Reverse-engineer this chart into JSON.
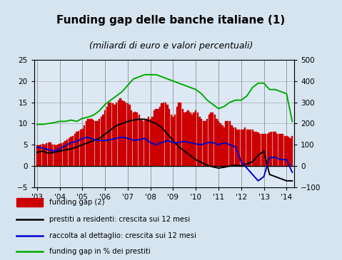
{
  "title": "Funding gap delle banche italiane (1)",
  "subtitle": "(miliardi di euro e valori percentuali)",
  "background_color": "#d6e4f0",
  "plot_bg_color": "#dce9f5",
  "title_bg_color": "#c8daea",
  "ylim_left": [
    -5,
    25
  ],
  "ylim_right": [
    -100,
    500
  ],
  "yticks_left": [
    -5,
    0,
    5,
    10,
    15,
    20,
    25
  ],
  "yticks_right": [
    -100,
    0,
    100,
    200,
    300,
    400,
    500
  ],
  "bar_color": "#cc0000",
  "bar_edge_color": "#cc0000",
  "x_labels": [
    "'03",
    "'04",
    "'05",
    "'06",
    "'07",
    "'08",
    "'09",
    "'10",
    "'11",
    "'12",
    "'13",
    "'14"
  ],
  "x_positions": [
    0,
    12,
    24,
    36,
    48,
    60,
    72,
    84,
    96,
    108,
    120,
    132
  ],
  "bar_x": [
    0,
    1,
    2,
    3,
    4,
    5,
    6,
    7,
    8,
    9,
    10,
    11,
    12,
    13,
    14,
    15,
    16,
    17,
    18,
    19,
    20,
    21,
    22,
    23,
    24,
    25,
    26,
    27,
    28,
    29,
    30,
    31,
    32,
    33,
    34,
    35,
    36,
    37,
    38,
    39,
    40,
    41,
    42,
    43,
    44,
    45,
    46,
    47,
    48,
    49,
    50,
    51,
    52,
    53,
    54,
    55,
    56,
    57,
    58,
    59,
    60,
    61,
    62,
    63,
    64,
    65,
    66,
    67,
    68,
    69,
    70,
    71,
    72,
    73,
    74,
    75,
    76,
    77,
    78,
    79,
    80,
    81,
    82,
    83,
    84,
    85,
    86,
    87,
    88,
    89,
    90,
    91,
    92,
    93,
    94,
    95,
    96,
    97,
    98,
    99,
    100,
    101,
    102,
    103,
    104,
    105,
    106,
    107,
    108,
    109,
    110,
    111,
    112,
    113,
    114,
    115,
    116,
    117,
    118,
    119,
    120,
    121,
    122,
    123,
    124,
    125,
    126,
    127,
    128,
    129,
    130,
    131,
    132,
    133,
    134,
    135
  ],
  "bar_values": [
    4.8,
    4.9,
    5.1,
    5.2,
    5.0,
    5.3,
    5.5,
    5.6,
    5.0,
    5.0,
    4.8,
    5.0,
    5.2,
    5.4,
    5.5,
    5.8,
    6.2,
    6.5,
    6.8,
    7.0,
    7.5,
    8.0,
    8.3,
    8.5,
    8.8,
    9.5,
    10.5,
    11.0,
    11.0,
    11.0,
    10.8,
    10.5,
    10.5,
    11.0,
    11.5,
    12.0,
    13.0,
    14.0,
    15.0,
    15.0,
    14.8,
    14.5,
    15.0,
    15.5,
    16.0,
    15.5,
    15.2,
    15.0,
    14.7,
    14.5,
    13.0,
    12.5,
    12.8,
    12.5,
    12.0,
    11.0,
    10.5,
    10.8,
    11.0,
    11.5,
    11.0,
    11.5,
    13.0,
    13.5,
    13.5,
    14.0,
    14.8,
    15.0,
    15.0,
    14.5,
    13.5,
    12.0,
    11.5,
    12.0,
    14.0,
    15.0,
    15.0,
    13.5,
    12.5,
    12.8,
    13.0,
    12.5,
    12.0,
    12.5,
    13.0,
    12.5,
    11.5,
    11.0,
    10.5,
    10.5,
    11.0,
    12.0,
    12.5,
    12.5,
    12.0,
    11.0,
    10.5,
    10.0,
    9.5,
    9.0,
    10.5,
    10.5,
    10.5,
    9.5,
    9.0,
    9.0,
    8.5,
    8.5,
    8.5,
    8.5,
    9.0,
    8.5,
    8.5,
    8.5,
    8.5,
    8.0,
    8.0,
    7.8,
    7.5,
    7.5,
    7.5,
    7.5,
    7.5,
    7.8,
    8.0,
    8.0,
    8.0,
    7.5,
    7.5,
    7.5,
    7.5,
    7.0,
    7.0,
    6.8,
    6.5,
    7.0
  ],
  "black_line_x": [
    0,
    3,
    6,
    9,
    12,
    15,
    18,
    21,
    24,
    27,
    30,
    33,
    36,
    39,
    42,
    45,
    48,
    51,
    54,
    57,
    60,
    63,
    66,
    69,
    72,
    75,
    78,
    81,
    84,
    87,
    90,
    93,
    96,
    99,
    102,
    105,
    108,
    111,
    114,
    117,
    120,
    123,
    126,
    129,
    132,
    135
  ],
  "black_line_y": [
    3.2,
    3.5,
    3.0,
    3.2,
    3.5,
    3.8,
    4.0,
    4.5,
    5.0,
    5.5,
    6.0,
    6.5,
    7.5,
    8.5,
    9.5,
    10.0,
    10.5,
    10.8,
    11.0,
    11.0,
    10.5,
    10.0,
    9.0,
    7.5,
    6.0,
    4.5,
    3.5,
    2.5,
    1.5,
    0.8,
    0.2,
    -0.2,
    -0.5,
    -0.3,
    0.0,
    0.2,
    0.0,
    0.5,
    1.0,
    2.5,
    3.5,
    -2.0,
    -2.5,
    -3.0,
    -3.5,
    -3.5
  ],
  "blue_line_x": [
    0,
    3,
    6,
    9,
    12,
    15,
    18,
    21,
    24,
    27,
    30,
    33,
    36,
    39,
    42,
    45,
    48,
    51,
    54,
    57,
    60,
    63,
    66,
    69,
    72,
    75,
    78,
    81,
    84,
    87,
    90,
    93,
    96,
    99,
    102,
    105,
    108,
    111,
    114,
    117,
    120,
    123,
    126,
    129,
    132,
    135
  ],
  "blue_line_y": [
    4.5,
    4.2,
    3.8,
    3.5,
    4.0,
    4.8,
    5.5,
    5.8,
    6.5,
    6.8,
    6.2,
    6.0,
    6.0,
    6.2,
    6.5,
    6.8,
    6.5,
    6.0,
    6.2,
    6.5,
    5.5,
    5.0,
    5.5,
    6.0,
    5.5,
    5.5,
    5.8,
    5.5,
    5.2,
    5.0,
    5.5,
    5.5,
    5.0,
    5.5,
    5.0,
    4.5,
    1.0,
    -0.5,
    -2.0,
    -3.5,
    -2.5,
    2.0,
    2.0,
    1.5,
    1.5,
    -1.5
  ],
  "green_line_x": [
    0,
    3,
    6,
    9,
    12,
    15,
    18,
    21,
    24,
    27,
    30,
    33,
    36,
    39,
    42,
    45,
    48,
    51,
    54,
    57,
    60,
    63,
    66,
    69,
    72,
    75,
    78,
    81,
    84,
    87,
    90,
    93,
    96,
    99,
    102,
    105,
    108,
    111,
    114,
    117,
    120,
    123,
    126,
    129,
    132,
    135
  ],
  "green_line_y": [
    9.8,
    9.8,
    10.0,
    10.2,
    10.5,
    10.5,
    10.8,
    10.5,
    11.2,
    11.5,
    12.0,
    13.0,
    14.5,
    15.5,
    16.5,
    17.5,
    19.0,
    20.5,
    21.0,
    21.5,
    21.5,
    21.5,
    21.0,
    20.5,
    20.0,
    19.5,
    19.0,
    18.5,
    18.0,
    17.0,
    15.5,
    14.5,
    13.5,
    14.0,
    15.0,
    15.5,
    15.5,
    16.5,
    18.5,
    19.5,
    19.5,
    18.0,
    18.0,
    17.5,
    17.0,
    10.5
  ],
  "legend_labels": [
    "funding gap (2)",
    "prestiti a residenti: crescita sui 12 mesi",
    "raccolta al dettaglio: crescita sui 12 mesi",
    "funding gap in % dei prestiti"
  ],
  "legend_colors": [
    "#cc0000",
    "#000000",
    "#0000cc",
    "#00aa00"
  ],
  "grid_color": "#aaaaaa",
  "vline_color": "#999999"
}
